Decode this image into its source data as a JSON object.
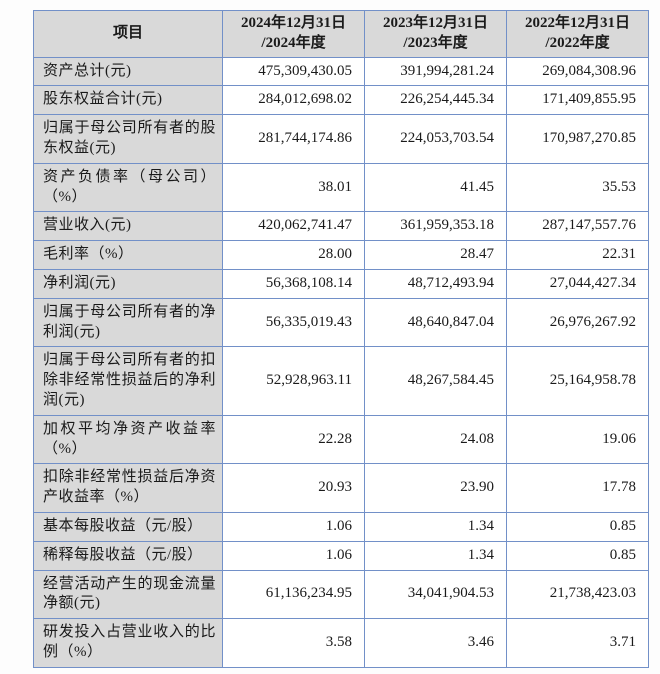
{
  "colors": {
    "border": "#7290c8",
    "header_bg": "#d9d9d9",
    "label_bg": "#d9d9d9",
    "cell_bg": "#ffffff",
    "page_bg": "#fdfdfd",
    "text": "#1a1a1a"
  },
  "table": {
    "item_header": "项目",
    "columns": [
      {
        "line1": "2024年12月31日",
        "line2": "/2024年度"
      },
      {
        "line1": "2023年12月31日",
        "line2": "/2023年度"
      },
      {
        "line1": "2022年12月31日",
        "line2": "/2022年度"
      }
    ],
    "rows": [
      {
        "label": "资产总计(元)",
        "v2024": "475,309,430.05",
        "v2023": "391,994,281.24",
        "v2022": "269,084,308.96"
      },
      {
        "label": "股东权益合计(元)",
        "v2024": "284,012,698.02",
        "v2023": "226,254,445.34",
        "v2022": "171,409,855.95"
      },
      {
        "label": "归属于母公司所有者的股东权益(元)",
        "v2024": "281,744,174.86",
        "v2023": "224,053,703.54",
        "v2022": "170,987,270.85"
      },
      {
        "label": "资产负债率（母公司）（%）",
        "v2024": "38.01",
        "v2023": "41.45",
        "v2022": "35.53"
      },
      {
        "label": "营业收入(元)",
        "v2024": "420,062,741.47",
        "v2023": "361,959,353.18",
        "v2022": "287,147,557.76"
      },
      {
        "label": "毛利率（%）",
        "v2024": "28.00",
        "v2023": "28.47",
        "v2022": "22.31"
      },
      {
        "label": "净利润(元)",
        "v2024": "56,368,108.14",
        "v2023": "48,712,493.94",
        "v2022": "27,044,427.34"
      },
      {
        "label": "归属于母公司所有者的净利润(元)",
        "v2024": "56,335,019.43",
        "v2023": "48,640,847.04",
        "v2022": "26,976,267.92"
      },
      {
        "label": "归属于母公司所有者的扣除非经常性损益后的净利润(元)",
        "v2024": "52,928,963.11",
        "v2023": "48,267,584.45",
        "v2022": "25,164,958.78"
      },
      {
        "label": "加权平均净资产收益率（%）",
        "v2024": "22.28",
        "v2023": "24.08",
        "v2022": "19.06"
      },
      {
        "label": "扣除非经常性损益后净资产收益率（%）",
        "v2024": "20.93",
        "v2023": "23.90",
        "v2022": "17.78"
      },
      {
        "label": "基本每股收益（元/股）",
        "v2024": "1.06",
        "v2023": "1.34",
        "v2022": "0.85"
      },
      {
        "label": "稀释每股收益（元/股）",
        "v2024": "1.06",
        "v2023": "1.34",
        "v2022": "0.85"
      },
      {
        "label": "经营活动产生的现金流量净额(元)",
        "v2024": "61,136,234.95",
        "v2023": "34,041,904.53",
        "v2022": "21,738,423.03"
      },
      {
        "label": "研发投入占营业收入的比例（%）",
        "v2024": "3.58",
        "v2023": "3.46",
        "v2022": "3.71"
      }
    ]
  }
}
